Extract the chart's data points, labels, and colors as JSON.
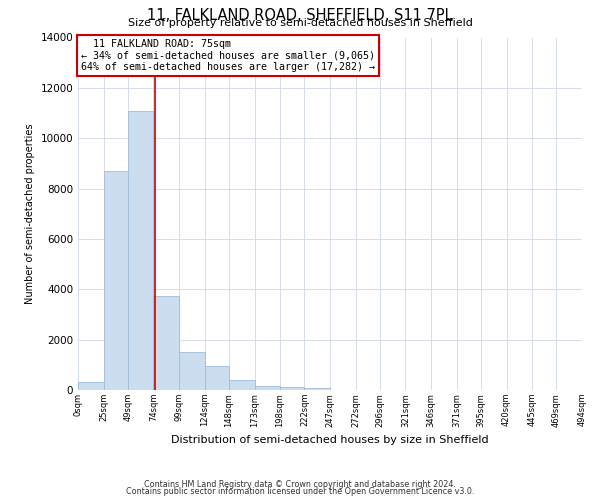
{
  "title": "11, FALKLAND ROAD, SHEFFIELD, S11 7PL",
  "subtitle": "Size of property relative to semi-detached houses in Sheffield",
  "xlabel": "Distribution of semi-detached houses by size in Sheffield",
  "ylabel": "Number of semi-detached properties",
  "bar_edges": [
    0,
    25,
    49,
    74,
    99,
    124,
    148,
    173,
    198,
    222,
    247,
    272,
    296,
    321,
    346,
    371,
    395,
    420,
    445,
    469,
    494
  ],
  "bar_heights": [
    300,
    8700,
    11100,
    3750,
    1500,
    950,
    400,
    150,
    100,
    60,
    0,
    0,
    0,
    0,
    0,
    0,
    0,
    0,
    0,
    0
  ],
  "tick_labels": [
    "0sqm",
    "25sqm",
    "49sqm",
    "74sqm",
    "99sqm",
    "124sqm",
    "148sqm",
    "173sqm",
    "198sqm",
    "222sqm",
    "247sqm",
    "272sqm",
    "296sqm",
    "321sqm",
    "346sqm",
    "371sqm",
    "395sqm",
    "420sqm",
    "445sqm",
    "469sqm",
    "494sqm"
  ],
  "property_size": 75,
  "property_label": "11 FALKLAND ROAD: 75sqm",
  "smaller_pct": 34,
  "smaller_count": "9,065",
  "larger_pct": 64,
  "larger_count": "17,282",
  "bar_color": "#ccddf0",
  "bar_edge_color": "#a0bcd8",
  "line_color": "#cc0000",
  "box_edge_color": "#cc0000",
  "ylim": [
    0,
    14000
  ],
  "yticks": [
    0,
    2000,
    4000,
    6000,
    8000,
    10000,
    12000,
    14000
  ],
  "footer1": "Contains HM Land Registry data © Crown copyright and database right 2024.",
  "footer2": "Contains public sector information licensed under the Open Government Licence v3.0.",
  "bg_color": "#ffffff",
  "grid_color": "#d0d8e8"
}
